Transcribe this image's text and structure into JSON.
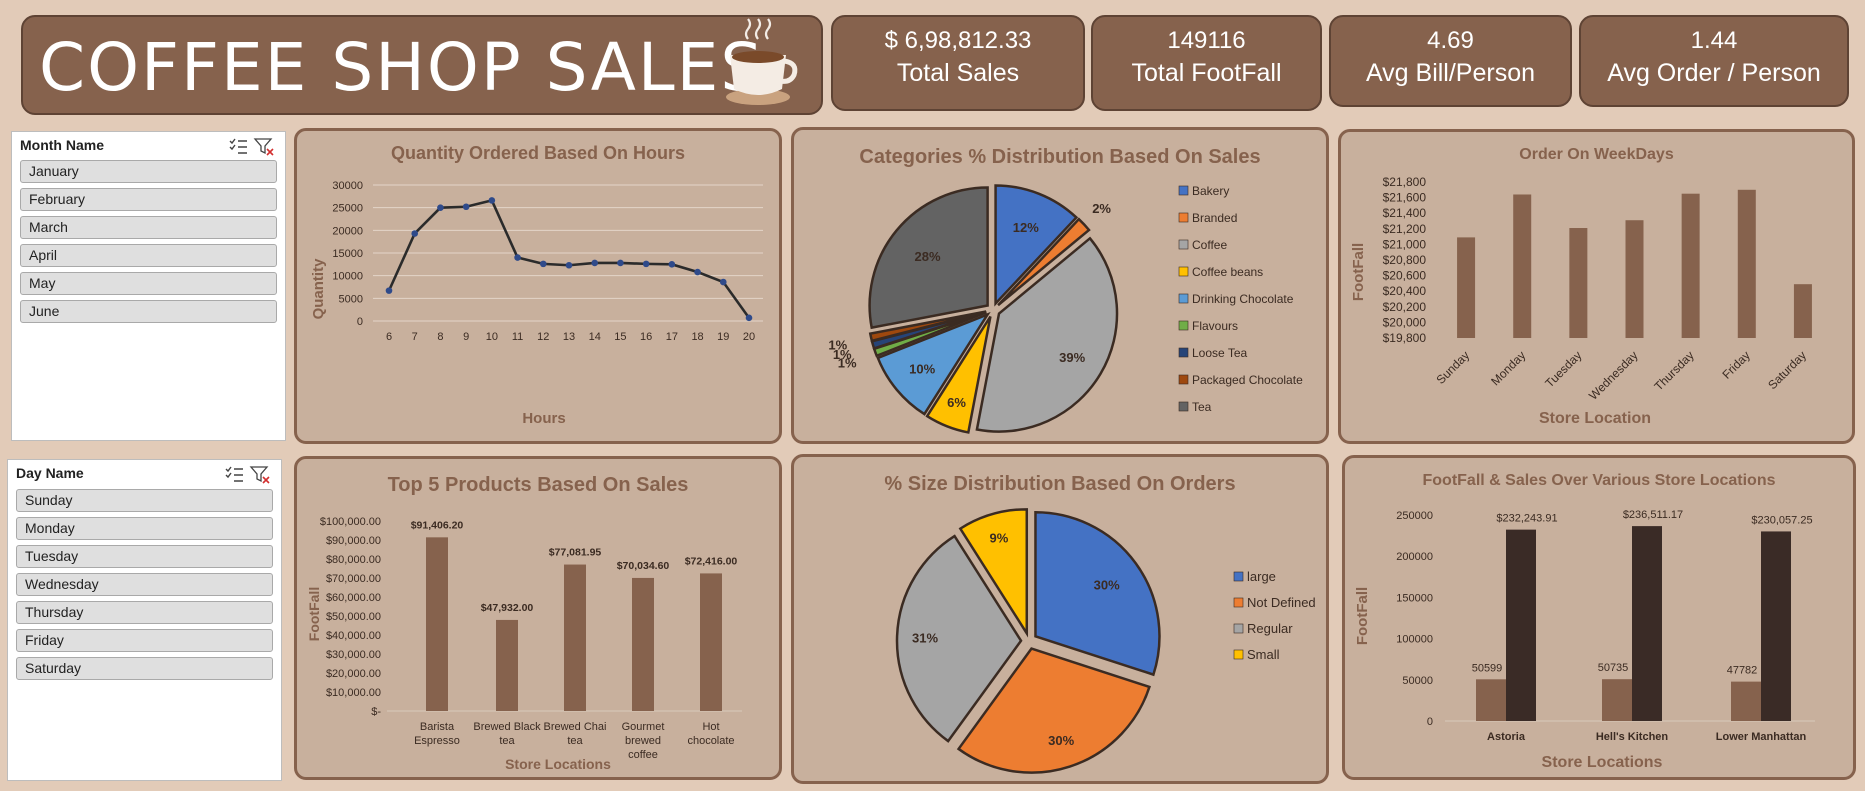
{
  "header": {
    "title": "COFFEE SHOP SALES"
  },
  "kpis": [
    {
      "value": "$ 6,98,812.33",
      "label": "Total Sales"
    },
    {
      "value": "149116",
      "label": "Total FootFall"
    },
    {
      "value": "4.69",
      "label": "Avg Bill/Person"
    },
    {
      "value": "1.44",
      "label": "Avg Order / Person"
    }
  ],
  "slicers": {
    "month": {
      "title": "Month Name",
      "items": [
        "January",
        "February",
        "March",
        "April",
        "May",
        "June"
      ]
    },
    "day": {
      "title": "Day Name",
      "items": [
        "Sunday",
        "Monday",
        "Tuesday",
        "Wednesday",
        "Thursday",
        "Friday",
        "Saturday"
      ]
    }
  },
  "colors": {
    "bar": "#86624d",
    "dark_bar": "#3a2b26",
    "line": "#2b2b2b",
    "marker": "#2f4a8a",
    "title": "#86624d",
    "pie": [
      "#4472c4",
      "#ed7d31",
      "#a5a5a5",
      "#ffc000",
      "#5b9bd5",
      "#70ad47",
      "#264478",
      "#9e480e",
      "#636363"
    ]
  },
  "chart_data": [
    {
      "type": "line",
      "title": "Quantity Ordered Based On Hours",
      "xlabel": "Hours",
      "ylabel": "Quantity",
      "x": [
        6,
        7,
        8,
        9,
        10,
        11,
        12,
        13,
        14,
        15,
        16,
        17,
        18,
        19,
        20
      ],
      "values": [
        6700,
        19300,
        25000,
        25200,
        26600,
        14000,
        12600,
        12300,
        12800,
        12800,
        12600,
        12500,
        10800,
        8600,
        700
      ],
      "ylim": [
        0,
        30000
      ],
      "yticks": [
        "0",
        "5000",
        "10000",
        "15000",
        "20000",
        "25000",
        "30000"
      ],
      "grid": true
    },
    {
      "type": "pie",
      "title": "Categories % Distribution Based On Sales",
      "categories": [
        "Bakery",
        "Branded",
        "Coffee",
        "Coffee beans",
        "Drinking Chocolate",
        "Flavours",
        "Loose Tea",
        "Packaged Chocolate",
        "Tea"
      ],
      "values": [
        12,
        2,
        39,
        6,
        10,
        1,
        1,
        1,
        28
      ],
      "labels": [
        "12%",
        "2%",
        "39%",
        "6%",
        "10%",
        "1%",
        "1%",
        "1%",
        "28%"
      ],
      "legend": "right"
    },
    {
      "type": "bar",
      "title": "Order On WeekDays",
      "xlabel": "Store Location",
      "ylabel": "FootFall",
      "categories": [
        "Sunday",
        "Monday",
        "Tuesday",
        "Wednesday",
        "Thursday",
        "Friday",
        "Saturday"
      ],
      "values": [
        21090,
        21640,
        21210,
        21310,
        21650,
        21700,
        20490
      ],
      "ylim": [
        19800,
        21800
      ],
      "yticks": [
        "$19,800",
        "$20,000",
        "$20,200",
        "$20,400",
        "$20,600",
        "$20,800",
        "$21,000",
        "$21,200",
        "$21,400",
        "$21,600",
        "$21,800"
      ]
    },
    {
      "type": "bar",
      "title": "Top 5 Products Based On Sales",
      "xlabel": "Store Locations",
      "ylabel": "FootFall",
      "categories": [
        [
          "Barista",
          "Espresso"
        ],
        [
          "Brewed Black",
          "tea"
        ],
        [
          "Brewed Chai",
          "tea"
        ],
        [
          "Gourmet",
          "brewed",
          "coffee"
        ],
        [
          "Hot",
          "chocolate"
        ]
      ],
      "values": [
        91406.2,
        47932,
        77081.95,
        70034.6,
        72416
      ],
      "data_labels": [
        "$91,406.20",
        "$47,932.00",
        "$77,081.95",
        "$70,034.60",
        "$72,416.00"
      ],
      "ylim": [
        0,
        100000
      ],
      "yticks": [
        "$-",
        "$10,000.00",
        "$20,000.00",
        "$30,000.00",
        "$40,000.00",
        "$50,000.00",
        "$60,000.00",
        "$70,000.00",
        "$80,000.00",
        "$90,000.00",
        "$100,000.00"
      ]
    },
    {
      "type": "pie",
      "title": "% Size Distribution Based On Orders",
      "categories": [
        "large",
        "Not Defined",
        "Regular",
        "Small"
      ],
      "values": [
        30,
        30,
        31,
        9
      ],
      "labels": [
        "30%",
        "30%",
        "31%",
        "9%"
      ],
      "legend": "right"
    },
    {
      "type": "bar",
      "title": "FootFall & Sales Over Various Store Locations",
      "xlabel": "Store Locations",
      "ylabel": "FootFall",
      "categories": [
        "Astoria",
        "Hell's Kitchen",
        "Lower Manhattan"
      ],
      "series": [
        {
          "values": [
            50599,
            50735,
            47782
          ],
          "labels": [
            "50599",
            "50735",
            "47782"
          ]
        },
        {
          "values": [
            232243.91,
            236511.17,
            230057.25
          ],
          "labels": [
            "$232,243.91",
            "$236,511.17",
            "$230,057.25"
          ]
        }
      ],
      "ylim": [
        0,
        250000
      ],
      "yticks": [
        "0",
        "50000",
        "100000",
        "150000",
        "200000",
        "250000"
      ]
    }
  ]
}
